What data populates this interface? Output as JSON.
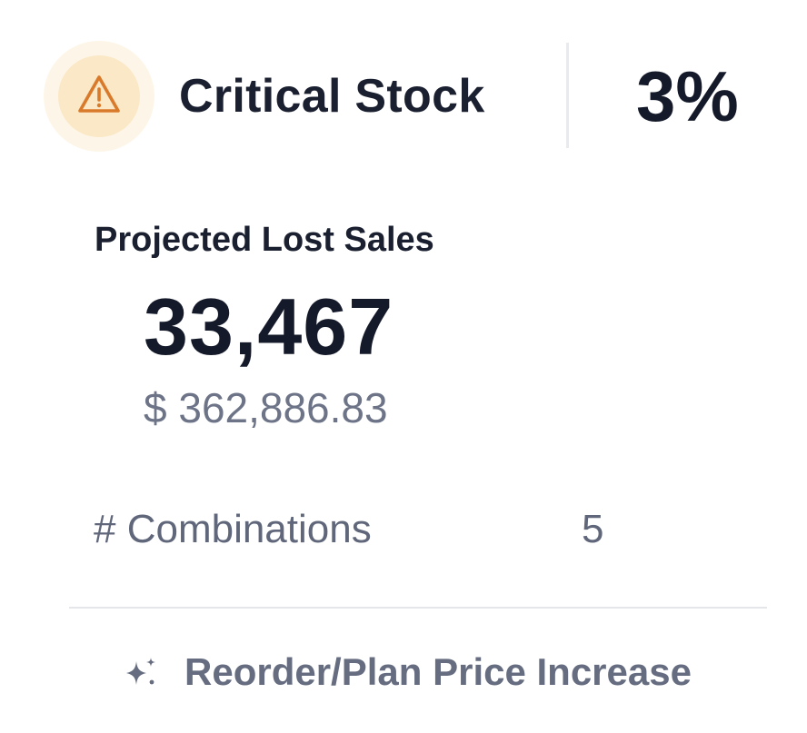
{
  "header": {
    "icon": "warning-triangle-icon",
    "title": "Critical Stock",
    "percent": "3%"
  },
  "lost_sales": {
    "label": "Projected Lost Sales",
    "units": "33,467",
    "amount": "$ 362,886.83"
  },
  "combinations": {
    "label": "# Combinations",
    "value": "5"
  },
  "action": {
    "icon": "sparkle-icon",
    "label": "Reorder/Plan Price Increase"
  },
  "colors": {
    "warning_accent": "#d97a2b",
    "warning_bg": "#fbe8c6",
    "text_primary": "#1b2030",
    "text_muted": "#60677b"
  }
}
